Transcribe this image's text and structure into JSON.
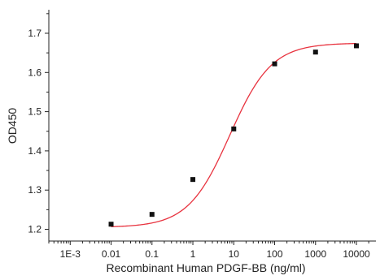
{
  "chart_data": {
    "type": "scatter",
    "xlabel": "Recombinant Human PDGF-BB (ng/ml)",
    "ylabel": "OD450",
    "x_scale": "log",
    "xlim": [
      0.0003,
      30000
    ],
    "ylim": [
      1.17,
      1.76
    ],
    "x_ticks": [
      0.001,
      0.01,
      0.1,
      1,
      10,
      100,
      1000,
      10000
    ],
    "x_tick_labels": [
      "1E-3",
      "0.01",
      "0.1",
      "1",
      "10",
      "100",
      "1000",
      "10000"
    ],
    "y_ticks": [
      1.2,
      1.3,
      1.4,
      1.5,
      1.6,
      1.7
    ],
    "y_tick_labels": [
      "1.2",
      "1.3",
      "1.4",
      "1.5",
      "1.6",
      "1.7"
    ],
    "grid": false,
    "points": [
      {
        "x": 0.01,
        "y": 1.213
      },
      {
        "x": 0.1,
        "y": 1.238
      },
      {
        "x": 1,
        "y": 1.327
      },
      {
        "x": 10,
        "y": 1.456
      },
      {
        "x": 100,
        "y": 1.622
      },
      {
        "x": 1000,
        "y": 1.652
      },
      {
        "x": 10000,
        "y": 1.668
      }
    ],
    "fit_curve": {
      "model": "4PL",
      "bottom": 1.205,
      "top": 1.675,
      "ec50": 8,
      "hill": 0.85,
      "x_range": [
        0.01,
        10000
      ]
    },
    "colors": {
      "marker": "#111111",
      "curve": "#e8333f",
      "axis": "#222222"
    }
  }
}
